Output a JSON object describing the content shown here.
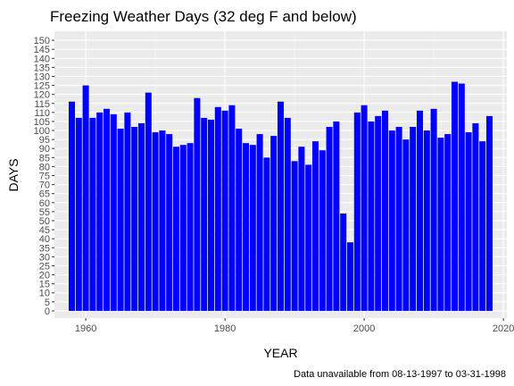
{
  "chart_data": {
    "type": "bar",
    "title": "Freezing Weather Days (32 deg F and below)",
    "xlabel": "YEAR",
    "ylabel": "DAYS",
    "caption": "Data unavailable from 08-13-1997 to 03-31-1998",
    "xlim": [
      1955.5,
      2020.5
    ],
    "ylim": [
      -4,
      155
    ],
    "x_ticks": [
      1960,
      1980,
      2000,
      2020
    ],
    "y_ticks": [
      0,
      5,
      10,
      15,
      20,
      25,
      30,
      35,
      40,
      45,
      50,
      55,
      60,
      65,
      70,
      75,
      80,
      85,
      90,
      95,
      100,
      105,
      110,
      115,
      120,
      125,
      130,
      135,
      140,
      145,
      150
    ],
    "grid": true,
    "legend": "none",
    "bar_color": "#0000ff",
    "panel_color": "#ebebeb",
    "x": [
      1958,
      1959,
      1960,
      1961,
      1962,
      1963,
      1964,
      1965,
      1966,
      1967,
      1968,
      1969,
      1970,
      1971,
      1972,
      1973,
      1974,
      1975,
      1976,
      1977,
      1978,
      1979,
      1980,
      1981,
      1982,
      1983,
      1984,
      1985,
      1986,
      1987,
      1988,
      1989,
      1990,
      1991,
      1992,
      1993,
      1994,
      1995,
      1996,
      1997,
      1998,
      1999,
      2000,
      2001,
      2002,
      2003,
      2004,
      2005,
      2006,
      2007,
      2008,
      2009,
      2010,
      2011,
      2012,
      2013,
      2014,
      2015,
      2016,
      2017,
      2018
    ],
    "values": [
      116,
      107,
      125,
      107,
      110,
      112,
      109,
      101,
      110,
      102,
      104,
      121,
      99,
      100,
      98,
      91,
      92,
      93,
      118,
      107,
      106,
      113,
      111,
      114,
      101,
      93,
      92,
      98,
      85,
      97,
      116,
      107,
      83,
      91,
      81,
      94,
      89,
      102,
      105,
      54,
      38,
      110,
      114,
      105,
      108,
      111,
      100,
      102,
      95,
      102,
      111,
      100,
      112,
      96,
      98,
      127,
      126,
      99,
      104,
      94,
      108
    ]
  }
}
